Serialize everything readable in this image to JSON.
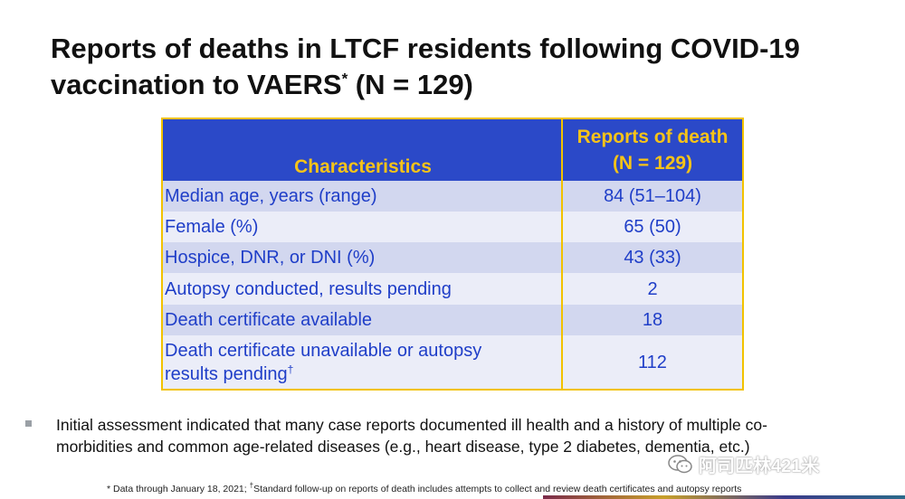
{
  "title": {
    "line1": "Reports of deaths in LTCF residents following COVID-19",
    "line2": "vaccination to VAERS",
    "line2_sup": "*",
    "line2_tail": " (N = 129)"
  },
  "table": {
    "header": {
      "col1": "Characteristics",
      "col2_line1": "Reports of death",
      "col2_line2": "(N = 129)"
    },
    "rows": [
      {
        "label": "Median age, years (range)",
        "value": "84 (51–104)"
      },
      {
        "label": "Female (%)",
        "value": "65 (50)"
      },
      {
        "label": "Hospice, DNR, or DNI (%)",
        "value": "43 (33)"
      },
      {
        "label": "Autopsy conducted, results pending",
        "value": "2"
      },
      {
        "label": "Death certificate available",
        "value": "18"
      },
      {
        "label_line1": "Death certificate unavailable or autopsy",
        "label_line2": "results pending",
        "label_sup": "†",
        "value": "112"
      }
    ],
    "colors": {
      "header_bg": "#2b49c8",
      "header_text": "#f6c318",
      "border": "#f2c200",
      "body_text": "#1f3ec8"
    }
  },
  "bullet": {
    "line1": "Initial assessment indicated that many case reports documented ill health and a history of multiple co-",
    "line2": "morbidities and common age-related diseases (e.g., heart disease, type 2 diabetes, dementia, etc.)"
  },
  "footnote": {
    "part1": "* Data through January 18, 2021; ",
    "sup": "†",
    "part2": "Standard follow-up on reports of death includes attempts to collect and review death certificates and autopsy reports"
  },
  "watermark": {
    "icon": "wechat-icon",
    "text": "阿司匹林421米"
  }
}
